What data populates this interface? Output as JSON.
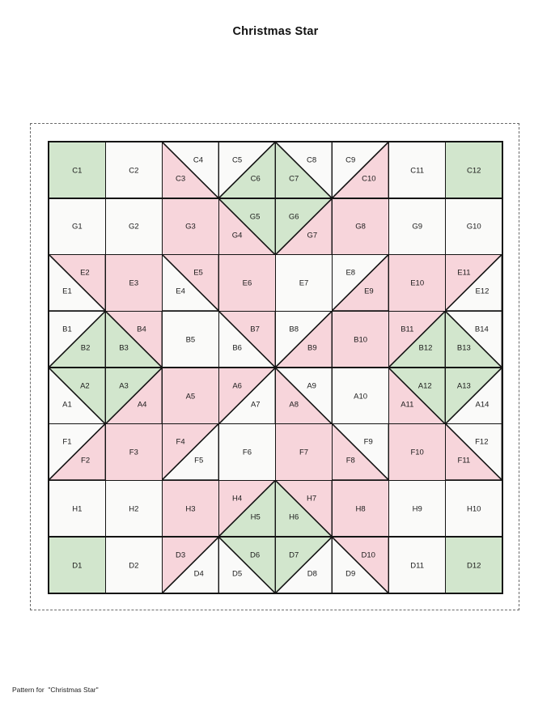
{
  "page": {
    "title": "Christmas Star",
    "footer": "Pattern for  \"Christmas Star\""
  },
  "palette": {
    "green": "#d2e6cd",
    "pink": "#f7d5db",
    "white": "#fafaf9",
    "line": "#141414",
    "label_color": "#1b1b1b"
  },
  "grid": {
    "rows": 8,
    "cols": 8,
    "cells": [
      {
        "type": "solid",
        "color": "green",
        "label": "C1"
      },
      {
        "type": "solid",
        "color": "white",
        "label": "C2"
      },
      {
        "type": "split",
        "diag": "tlbr",
        "top": {
          "label": "C4",
          "color": "white"
        },
        "bottom": {
          "label": "C3",
          "color": "pink"
        }
      },
      {
        "type": "split",
        "diag": "bltr",
        "top": {
          "label": "C5",
          "color": "white"
        },
        "bottom": {
          "label": "C6",
          "color": "green"
        }
      },
      {
        "type": "split",
        "diag": "tlbr",
        "top": {
          "label": "C8",
          "color": "white"
        },
        "bottom": {
          "label": "C7",
          "color": "green"
        }
      },
      {
        "type": "split",
        "diag": "bltr",
        "top": {
          "label": "C9",
          "color": "white"
        },
        "bottom": {
          "label": "C10",
          "color": "pink"
        }
      },
      {
        "type": "solid",
        "color": "white",
        "label": "C11"
      },
      {
        "type": "solid",
        "color": "green",
        "label": "C12"
      },
      {
        "type": "solid",
        "color": "white",
        "label": "G1"
      },
      {
        "type": "solid",
        "color": "white",
        "label": "G2"
      },
      {
        "type": "solid",
        "color": "pink",
        "label": "G3"
      },
      {
        "type": "split",
        "diag": "tlbr",
        "top": {
          "label": "G5",
          "color": "green"
        },
        "bottom": {
          "label": "G4",
          "color": "pink"
        }
      },
      {
        "type": "split",
        "diag": "bltr",
        "top": {
          "label": "G6",
          "color": "green"
        },
        "bottom": {
          "label": "G7",
          "color": "pink"
        }
      },
      {
        "type": "solid",
        "color": "pink",
        "label": "G8"
      },
      {
        "type": "solid",
        "color": "white",
        "label": "G9"
      },
      {
        "type": "solid",
        "color": "white",
        "label": "G10"
      },
      {
        "type": "split",
        "diag": "tlbr",
        "top": {
          "label": "E2",
          "color": "pink"
        },
        "bottom": {
          "label": "E1",
          "color": "white"
        }
      },
      {
        "type": "solid",
        "color": "pink",
        "label": "E3"
      },
      {
        "type": "split",
        "diag": "tlbr",
        "top": {
          "label": "E5",
          "color": "pink"
        },
        "bottom": {
          "label": "E4",
          "color": "white"
        }
      },
      {
        "type": "solid",
        "color": "pink",
        "label": "E6"
      },
      {
        "type": "solid",
        "color": "white",
        "label": "E7"
      },
      {
        "type": "split",
        "diag": "bltr",
        "top": {
          "label": "E8",
          "color": "white"
        },
        "bottom": {
          "label": "E9",
          "color": "pink"
        }
      },
      {
        "type": "solid",
        "color": "pink",
        "label": "E10"
      },
      {
        "type": "split",
        "diag": "bltr",
        "top": {
          "label": "E11",
          "color": "pink"
        },
        "bottom": {
          "label": "E12",
          "color": "white"
        }
      },
      {
        "type": "split",
        "diag": "bltr",
        "top": {
          "label": "B1",
          "color": "white"
        },
        "bottom": {
          "label": "B2",
          "color": "green"
        }
      },
      {
        "type": "split",
        "diag": "tlbr",
        "top": {
          "label": "B4",
          "color": "pink"
        },
        "bottom": {
          "label": "B3",
          "color": "green"
        }
      },
      {
        "type": "solid",
        "color": "white",
        "label": "B5"
      },
      {
        "type": "split",
        "diag": "tlbr",
        "top": {
          "label": "B7",
          "color": "pink"
        },
        "bottom": {
          "label": "B6",
          "color": "white"
        }
      },
      {
        "type": "split",
        "diag": "bltr",
        "top": {
          "label": "B8",
          "color": "white"
        },
        "bottom": {
          "label": "B9",
          "color": "pink"
        }
      },
      {
        "type": "solid",
        "color": "pink",
        "label": "B10"
      },
      {
        "type": "split",
        "diag": "bltr",
        "top": {
          "label": "B11",
          "color": "pink"
        },
        "bottom": {
          "label": "B12",
          "color": "green"
        }
      },
      {
        "type": "split",
        "diag": "tlbr",
        "top": {
          "label": "B14",
          "color": "white"
        },
        "bottom": {
          "label": "B13",
          "color": "green"
        }
      },
      {
        "type": "split",
        "diag": "tlbr",
        "top": {
          "label": "A2",
          "color": "green"
        },
        "bottom": {
          "label": "A1",
          "color": "white"
        }
      },
      {
        "type": "split",
        "diag": "bltr",
        "top": {
          "label": "A3",
          "color": "green"
        },
        "bottom": {
          "label": "A4",
          "color": "pink"
        }
      },
      {
        "type": "solid",
        "color": "pink",
        "label": "A5"
      },
      {
        "type": "split",
        "diag": "bltr",
        "top": {
          "label": "A6",
          "color": "pink"
        },
        "bottom": {
          "label": "A7",
          "color": "white"
        }
      },
      {
        "type": "split",
        "diag": "tlbr",
        "top": {
          "label": "A9",
          "color": "white"
        },
        "bottom": {
          "label": "A8",
          "color": "pink"
        }
      },
      {
        "type": "solid",
        "color": "white",
        "label": "A10"
      },
      {
        "type": "split",
        "diag": "tlbr",
        "top": {
          "label": "A12",
          "color": "green"
        },
        "bottom": {
          "label": "A11",
          "color": "pink"
        }
      },
      {
        "type": "split",
        "diag": "bltr",
        "top": {
          "label": "A13",
          "color": "green"
        },
        "bottom": {
          "label": "A14",
          "color": "white"
        }
      },
      {
        "type": "split",
        "diag": "bltr",
        "top": {
          "label": "F1",
          "color": "white"
        },
        "bottom": {
          "label": "F2",
          "color": "pink"
        }
      },
      {
        "type": "solid",
        "color": "pink",
        "label": "F3"
      },
      {
        "type": "split",
        "diag": "bltr",
        "top": {
          "label": "F4",
          "color": "pink"
        },
        "bottom": {
          "label": "F5",
          "color": "white"
        }
      },
      {
        "type": "solid",
        "color": "white",
        "label": "F6"
      },
      {
        "type": "solid",
        "color": "pink",
        "label": "F7"
      },
      {
        "type": "split",
        "diag": "tlbr",
        "top": {
          "label": "F9",
          "color": "white"
        },
        "bottom": {
          "label": "F8",
          "color": "pink"
        }
      },
      {
        "type": "solid",
        "color": "pink",
        "label": "F10"
      },
      {
        "type": "split",
        "diag": "tlbr",
        "top": {
          "label": "F12",
          "color": "white"
        },
        "bottom": {
          "label": "F11",
          "color": "pink"
        }
      },
      {
        "type": "solid",
        "color": "white",
        "label": "H1"
      },
      {
        "type": "solid",
        "color": "white",
        "label": "H2"
      },
      {
        "type": "solid",
        "color": "pink",
        "label": "H3"
      },
      {
        "type": "split",
        "diag": "bltr",
        "top": {
          "label": "H4",
          "color": "pink"
        },
        "bottom": {
          "label": "H5",
          "color": "green"
        }
      },
      {
        "type": "split",
        "diag": "tlbr",
        "top": {
          "label": "H7",
          "color": "pink"
        },
        "bottom": {
          "label": "H6",
          "color": "green"
        }
      },
      {
        "type": "solid",
        "color": "pink",
        "label": "H8"
      },
      {
        "type": "solid",
        "color": "white",
        "label": "H9"
      },
      {
        "type": "solid",
        "color": "white",
        "label": "H10"
      },
      {
        "type": "solid",
        "color": "green",
        "label": "D1"
      },
      {
        "type": "solid",
        "color": "white",
        "label": "D2"
      },
      {
        "type": "split",
        "diag": "bltr",
        "top": {
          "label": "D3",
          "color": "pink"
        },
        "bottom": {
          "label": "D4",
          "color": "white"
        }
      },
      {
        "type": "split",
        "diag": "tlbr",
        "top": {
          "label": "D6",
          "color": "green"
        },
        "bottom": {
          "label": "D5",
          "color": "white"
        }
      },
      {
        "type": "split",
        "diag": "bltr",
        "top": {
          "label": "D7",
          "color": "green"
        },
        "bottom": {
          "label": "D8",
          "color": "white"
        }
      },
      {
        "type": "split",
        "diag": "tlbr",
        "top": {
          "label": "D10",
          "color": "pink"
        },
        "bottom": {
          "label": "D9",
          "color": "white"
        }
      },
      {
        "type": "solid",
        "color": "white",
        "label": "D11"
      },
      {
        "type": "solid",
        "color": "green",
        "label": "D12"
      }
    ]
  }
}
